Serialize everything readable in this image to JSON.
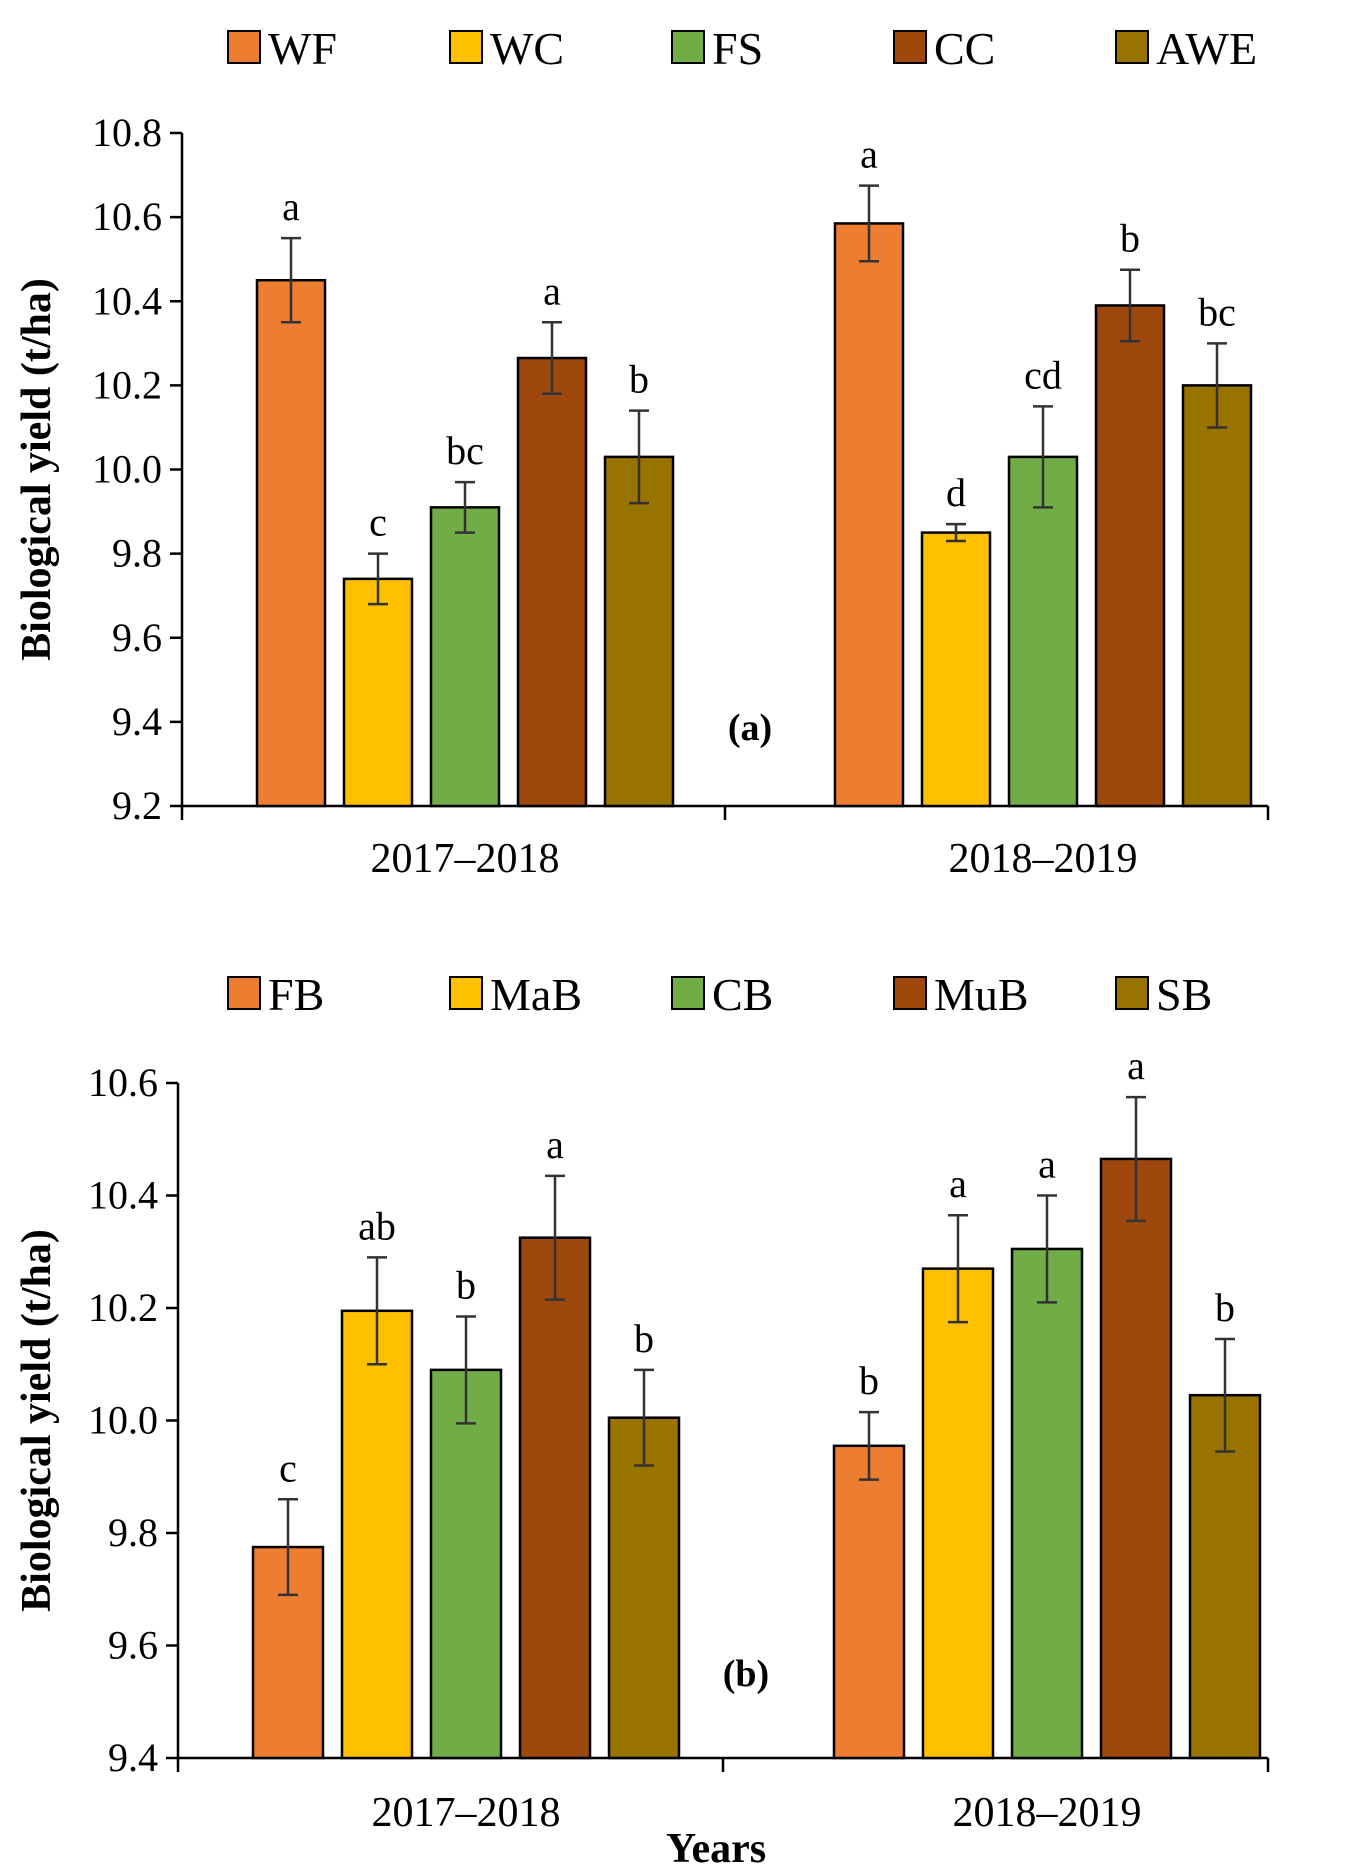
{
  "colors": [
    "#ED7D31",
    "#FFC000",
    "#70AD47",
    "#9E480E",
    "#997300"
  ],
  "chart_data": [
    {
      "type": "bar",
      "panel": "(a)",
      "categories": [
        "2017–2018",
        "2018–2019"
      ],
      "series": [
        {
          "name": "WF",
          "values": [
            10.45,
            10.585
          ],
          "errors": [
            0.1,
            0.09
          ],
          "letters": [
            "a",
            "a"
          ]
        },
        {
          "name": "WC",
          "values": [
            9.74,
            9.85
          ],
          "errors": [
            0.06,
            0.02
          ],
          "letters": [
            "c",
            "d"
          ]
        },
        {
          "name": "FS",
          "values": [
            9.91,
            10.03
          ],
          "errors": [
            0.06,
            0.12
          ],
          "letters": [
            "bc",
            "cd"
          ]
        },
        {
          "name": "CC",
          "values": [
            10.265,
            10.39
          ],
          "errors": [
            0.085,
            0.085
          ],
          "letters": [
            "a",
            "b"
          ]
        },
        {
          "name": "AWE",
          "values": [
            10.03,
            10.2
          ],
          "errors": [
            0.11,
            0.1
          ],
          "letters": [
            "b",
            "bc"
          ]
        }
      ],
      "ylabel": "Biological yield (t/ha)",
      "xlabel": "",
      "ylim": [
        9.2,
        10.8
      ],
      "yticks": [
        "9.2",
        "9.4",
        "9.6",
        "9.8",
        "10.0",
        "10.2",
        "10.4",
        "10.6",
        "10.8"
      ],
      "legend": "top"
    },
    {
      "type": "bar",
      "panel": "(b)",
      "categories": [
        "2017–2018",
        "2018–2019"
      ],
      "series": [
        {
          "name": "FB",
          "values": [
            9.775,
            9.955
          ],
          "errors": [
            0.085,
            0.06
          ],
          "letters": [
            "c",
            "b"
          ]
        },
        {
          "name": "MaB",
          "values": [
            10.195,
            10.27
          ],
          "errors": [
            0.095,
            0.095
          ],
          "letters": [
            "ab",
            "a"
          ]
        },
        {
          "name": "CB",
          "values": [
            10.09,
            10.305
          ],
          "errors": [
            0.095,
            0.095
          ],
          "letters": [
            "b",
            "a"
          ]
        },
        {
          "name": "MuB",
          "values": [
            10.325,
            10.465
          ],
          "errors": [
            0.11,
            0.11
          ],
          "letters": [
            "a",
            "a"
          ]
        },
        {
          "name": "SB",
          "values": [
            10.005,
            10.045
          ],
          "errors": [
            0.085,
            0.1
          ],
          "letters": [
            "b",
            "b"
          ]
        }
      ],
      "ylabel": "Biological yield (t/ha)",
      "xlabel": "Years",
      "ylim": [
        9.4,
        10.6
      ],
      "yticks": [
        "9.4",
        "9.6",
        "9.8",
        "10.0",
        "10.2",
        "10.4",
        "10.6"
      ],
      "legend": "top"
    }
  ]
}
